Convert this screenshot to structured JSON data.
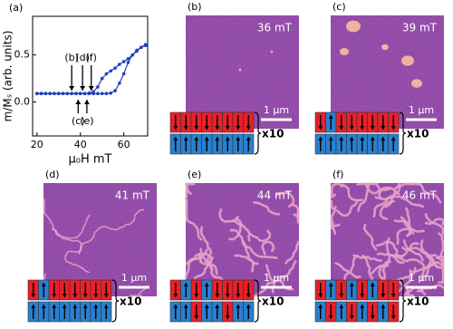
{
  "chart_data": {
    "type": "line",
    "label": "(a)",
    "xlabel": "μ₀H mT",
    "ylabel": "m/Mₛ (arb. units)",
    "xlim": [
      18,
      71
    ],
    "ylim": [
      -0.36,
      0.91
    ],
    "xticks": [
      20,
      40,
      60
    ],
    "yticks": [
      {
        "value": 0,
        "label": "0.0"
      },
      0.5
    ],
    "series": [
      {
        "color": "#2040c0",
        "x": [
          20,
          22,
          24,
          26,
          28,
          30,
          32,
          34,
          36,
          38,
          40,
          42,
          44,
          46,
          48,
          50,
          52,
          54,
          56,
          58,
          60,
          62,
          64,
          66,
          68,
          70
        ],
        "values": [
          0.09,
          0.09,
          0.09,
          0.09,
          0.09,
          0.09,
          0.09,
          0.09,
          0.09,
          0.09,
          0.09,
          0.09,
          0.095,
          0.11,
          0.16,
          0.25,
          0.3,
          0.33,
          0.36,
          0.4,
          0.43,
          0.46,
          0.5,
          0.54,
          0.58,
          0.61
        ]
      },
      {
        "color": "#2040c0",
        "x": [
          20,
          22,
          24,
          26,
          28,
          30,
          32,
          34,
          36,
          38,
          40,
          42,
          44,
          46,
          48,
          50,
          52,
          54,
          56,
          58,
          60,
          62,
          64,
          66,
          68,
          70
        ],
        "values": [
          0.09,
          0.09,
          0.09,
          0.09,
          0.09,
          0.09,
          0.09,
          0.09,
          0.09,
          0.09,
          0.09,
          0.09,
          0.09,
          0.09,
          0.09,
          0.09,
          0.09,
          0.095,
          0.12,
          0.2,
          0.3,
          0.42,
          0.5,
          0.55,
          0.58,
          0.6
        ]
      }
    ],
    "annotations": [
      {
        "text": "(b)",
        "x": 36,
        "position": "above"
      },
      {
        "text": "(d)",
        "x": 41,
        "position": "above"
      },
      {
        "text": "(f)",
        "x": 45,
        "position": "above"
      },
      {
        "text": "(c)",
        "x": 39,
        "position": "below"
      },
      {
        "text": "(e)",
        "x": 43,
        "position": "below"
      }
    ]
  },
  "panels": [
    {
      "label": "(b)",
      "field": "36 mT",
      "scale": "1 μm",
      "multiplier": "x10"
    },
    {
      "label": "(c)",
      "field": "39 mT",
      "scale": "1 μm",
      "multiplier": "x10"
    },
    {
      "label": "(d)",
      "field": "41 mT",
      "scale": "1 μm",
      "multiplier": "x10"
    },
    {
      "label": "(e)",
      "field": "44 mT",
      "scale": "1 μm",
      "multiplier": "x10"
    },
    {
      "label": "(f)",
      "field": "46 mT",
      "scale": "1 μm",
      "multiplier": "x10"
    }
  ]
}
